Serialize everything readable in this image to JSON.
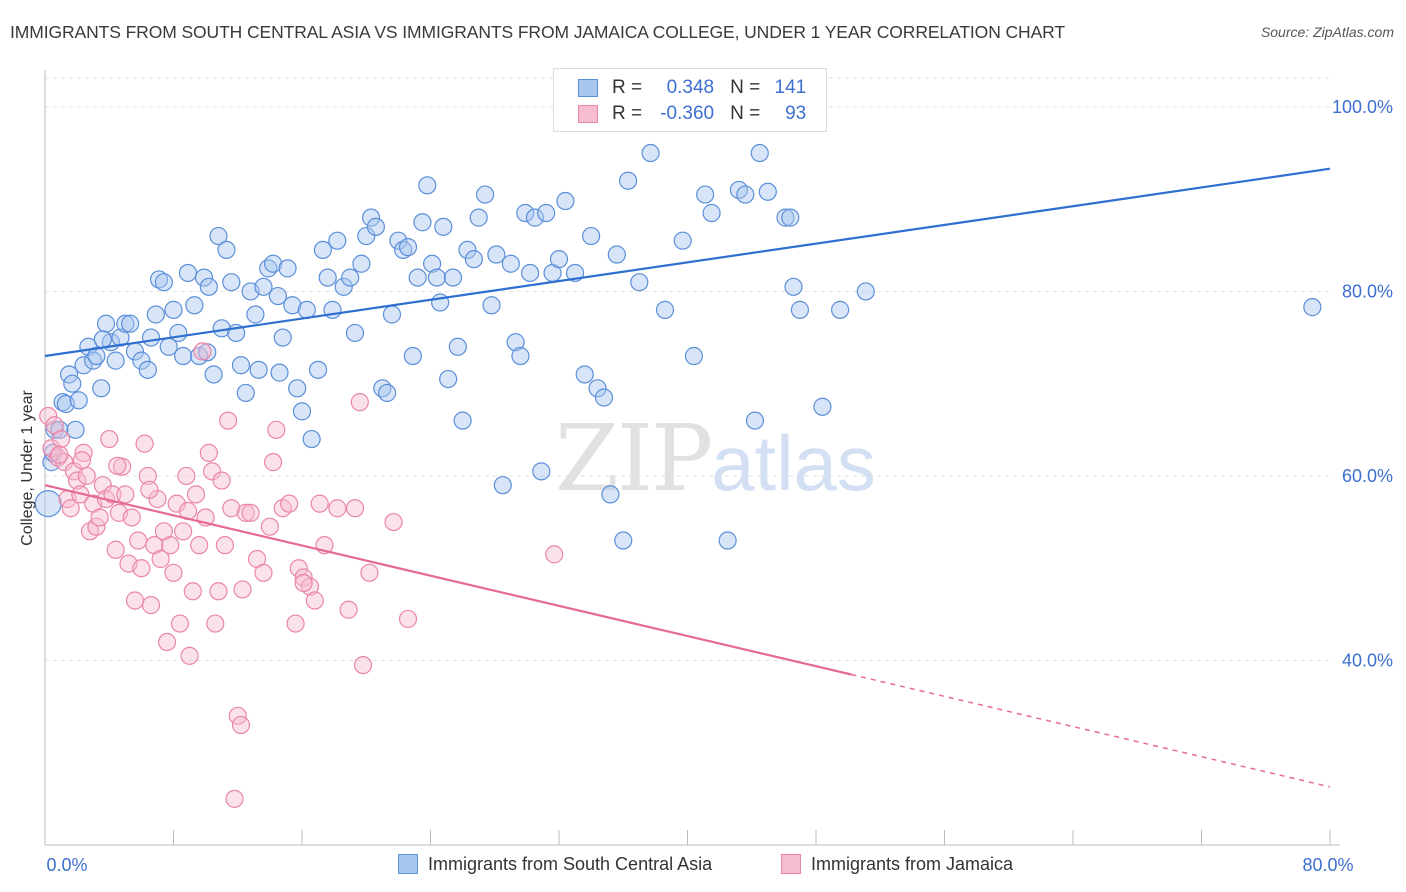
{
  "title": "IMMIGRANTS FROM SOUTH CENTRAL ASIA VS IMMIGRANTS FROM JAMAICA COLLEGE, UNDER 1 YEAR CORRELATION CHART",
  "source": "Source: ZipAtlas.com",
  "watermark": {
    "zip": "ZIP",
    "atlas": "atlas"
  },
  "colors": {
    "blue_fill": "#a9c6ef",
    "blue_stroke": "#5b8fd9",
    "blue_line": "#2f6fd0",
    "pink_fill": "#f6bcd0",
    "pink_stroke": "#ea86a7",
    "pink_line": "#e46b96",
    "axis_label": "#3d6fd1",
    "grid": "#e2e2e2"
  },
  "legend": [
    {
      "r_label": "R =",
      "r_value": "0.348",
      "n_label": "N =",
      "n_value": "141"
    },
    {
      "r_label": "R =",
      "r_value": "-0.360",
      "n_label": "N =",
      "n_value": "93"
    }
  ],
  "chart_data": {
    "type": "scatter",
    "title": "IMMIGRANTS FROM SOUTH CENTRAL ASIA VS IMMIGRANTS FROM JAMAICA COLLEGE, UNDER 1 YEAR CORRELATION CHART",
    "xlabel": "",
    "ylabel": "College, Under 1 year",
    "xlim": [
      0,
      80
    ],
    "ylim": [
      20,
      104
    ],
    "x_ticks": [
      0,
      8,
      16,
      24,
      32,
      40,
      48,
      56,
      64,
      72,
      80
    ],
    "x_tick_labels": [
      "0.0%",
      "",
      "",
      "",
      "",
      "",
      "",
      "",
      "",
      "",
      "80.0%"
    ],
    "y_ticks": [
      40,
      60,
      80,
      100
    ],
    "y_tick_labels": [
      "40.0%",
      "60.0%",
      "80.0%",
      "100.0%"
    ],
    "grid": true,
    "legend_position": "top-center",
    "series": [
      {
        "name": "Immigrants from South Central Asia",
        "color": "#5b8fd9",
        "trend": {
          "x": [
            0,
            80
          ],
          "y": [
            73.0,
            93.3
          ],
          "dashed_from": null
        },
        "points": [
          [
            0.2,
            57
          ],
          [
            0.4,
            61.5
          ],
          [
            0.5,
            62.5
          ],
          [
            0.6,
            65
          ],
          [
            0.9,
            65
          ],
          [
            1.1,
            68
          ],
          [
            1.3,
            67.8
          ],
          [
            1.5,
            71
          ],
          [
            1.7,
            70
          ],
          [
            1.9,
            65
          ],
          [
            2.1,
            68.2
          ],
          [
            2.4,
            72
          ],
          [
            2.7,
            74
          ],
          [
            3,
            72.5
          ],
          [
            3.2,
            73
          ],
          [
            3.5,
            69.5
          ],
          [
            3.8,
            76.5
          ],
          [
            4.1,
            74.5
          ],
          [
            4.4,
            72.5
          ],
          [
            4.7,
            75
          ],
          [
            5,
            76.5
          ],
          [
            5.3,
            76.5
          ],
          [
            5.6,
            73.5
          ],
          [
            6,
            72.5
          ],
          [
            6.4,
            71.5
          ],
          [
            6.6,
            75
          ],
          [
            6.9,
            77.5
          ],
          [
            7.1,
            81.3
          ],
          [
            7.4,
            81
          ],
          [
            7.7,
            74
          ],
          [
            8,
            78
          ],
          [
            8.3,
            75.5
          ],
          [
            8.6,
            73
          ],
          [
            8.9,
            82
          ],
          [
            9.3,
            78.5
          ],
          [
            9.6,
            73
          ],
          [
            9.9,
            81.5
          ],
          [
            10.2,
            80.5
          ],
          [
            10.5,
            71
          ],
          [
            10.8,
            86
          ],
          [
            11,
            76
          ],
          [
            11.3,
            84.5
          ],
          [
            11.6,
            81
          ],
          [
            11.9,
            75.5
          ],
          [
            12.2,
            72
          ],
          [
            12.5,
            69
          ],
          [
            12.8,
            80
          ],
          [
            13.1,
            77.5
          ],
          [
            13.3,
            71.5
          ],
          [
            13.6,
            80.5
          ],
          [
            13.9,
            82.5
          ],
          [
            14.2,
            83
          ],
          [
            14.5,
            79.5
          ],
          [
            14.8,
            75
          ],
          [
            15.1,
            82.5
          ],
          [
            15.4,
            78.5
          ],
          [
            15.7,
            69.5
          ],
          [
            16,
            67
          ],
          [
            16.3,
            78
          ],
          [
            16.6,
            64
          ],
          [
            17,
            71.5
          ],
          [
            17.3,
            84.5
          ],
          [
            17.6,
            81.5
          ],
          [
            17.9,
            78
          ],
          [
            18.2,
            85.5
          ],
          [
            18.6,
            80.5
          ],
          [
            19,
            81.5
          ],
          [
            19.3,
            75.5
          ],
          [
            19.7,
            83
          ],
          [
            20,
            86
          ],
          [
            20.3,
            88
          ],
          [
            20.6,
            87
          ],
          [
            21,
            69.5
          ],
          [
            21.3,
            69
          ],
          [
            21.6,
            77.5
          ],
          [
            22,
            85.5
          ],
          [
            22.3,
            84.5
          ],
          [
            22.6,
            84.8
          ],
          [
            22.9,
            73
          ],
          [
            23.2,
            81.5
          ],
          [
            23.5,
            87.5
          ],
          [
            23.8,
            91.5
          ],
          [
            24.1,
            83
          ],
          [
            24.4,
            81.5
          ],
          [
            24.8,
            87
          ],
          [
            25.1,
            70.5
          ],
          [
            25.4,
            81.5
          ],
          [
            25.7,
            74
          ],
          [
            26,
            66
          ],
          [
            26.3,
            84.5
          ],
          [
            26.7,
            83.5
          ],
          [
            27,
            88
          ],
          [
            27.4,
            90.5
          ],
          [
            27.8,
            78.5
          ],
          [
            28.1,
            84
          ],
          [
            28.5,
            59
          ],
          [
            29,
            83
          ],
          [
            29.3,
            74.5
          ],
          [
            29.6,
            73
          ],
          [
            29.9,
            88.5
          ],
          [
            30.2,
            82
          ],
          [
            30.5,
            88
          ],
          [
            30.9,
            60.5
          ],
          [
            31.2,
            88.5
          ],
          [
            31.6,
            82
          ],
          [
            32,
            83.5
          ],
          [
            32.4,
            89.8
          ],
          [
            33,
            82
          ],
          [
            33.6,
            71
          ],
          [
            34,
            86
          ],
          [
            34.4,
            69.5
          ],
          [
            34.8,
            68.5
          ],
          [
            35.2,
            58
          ],
          [
            35.6,
            84
          ],
          [
            36,
            53
          ],
          [
            36.3,
            92
          ],
          [
            37,
            81
          ],
          [
            37.7,
            95
          ],
          [
            38.6,
            78
          ],
          [
            39.7,
            85.5
          ],
          [
            40.4,
            73
          ],
          [
            41.1,
            90.5
          ],
          [
            41.5,
            88.5
          ],
          [
            42.5,
            53
          ],
          [
            43.2,
            91
          ],
          [
            43.6,
            90.5
          ],
          [
            44.2,
            66
          ],
          [
            44.5,
            95
          ],
          [
            45,
            90.8
          ],
          [
            46.1,
            88
          ],
          [
            46.4,
            88
          ],
          [
            46.6,
            80.5
          ],
          [
            47,
            78
          ],
          [
            48.4,
            67.5
          ],
          [
            49.5,
            78
          ],
          [
            51.1,
            80
          ],
          [
            78.9,
            78.3
          ],
          [
            3.6,
            74.8
          ],
          [
            10.1,
            73.4
          ],
          [
            14.6,
            71.2
          ],
          [
            24.6,
            78.8
          ]
        ]
      },
      {
        "name": "Immigrants from Jamaica",
        "color": "#ea86a7",
        "trend": {
          "x": [
            0,
            80
          ],
          "y": [
            59.0,
            26.3
          ],
          "dashed_from": 50.2
        },
        "points": [
          [
            0.2,
            66.5
          ],
          [
            0.4,
            63
          ],
          [
            0.6,
            65.5
          ],
          [
            0.8,
            62
          ],
          [
            1,
            64
          ],
          [
            1.2,
            61.5
          ],
          [
            1.4,
            57.5
          ],
          [
            1.6,
            56.5
          ],
          [
            1.8,
            60.5
          ],
          [
            2,
            59.5
          ],
          [
            2.2,
            58
          ],
          [
            2.4,
            62.5
          ],
          [
            2.6,
            60
          ],
          [
            2.8,
            54
          ],
          [
            3,
            57
          ],
          [
            3.2,
            54.5
          ],
          [
            3.4,
            55.5
          ],
          [
            3.6,
            59
          ],
          [
            3.8,
            57.5
          ],
          [
            4,
            64
          ],
          [
            4.2,
            58
          ],
          [
            4.4,
            52
          ],
          [
            4.6,
            56
          ],
          [
            4.8,
            61
          ],
          [
            5,
            58
          ],
          [
            5.2,
            50.5
          ],
          [
            5.4,
            55.5
          ],
          [
            5.6,
            46.5
          ],
          [
            5.8,
            53
          ],
          [
            6,
            50
          ],
          [
            6.2,
            63.5
          ],
          [
            6.4,
            60
          ],
          [
            6.6,
            46
          ],
          [
            6.8,
            52.5
          ],
          [
            7,
            57.5
          ],
          [
            7.2,
            51
          ],
          [
            7.4,
            54
          ],
          [
            7.6,
            42
          ],
          [
            7.8,
            52.5
          ],
          [
            8,
            49.5
          ],
          [
            8.2,
            57
          ],
          [
            8.4,
            44
          ],
          [
            8.6,
            54
          ],
          [
            8.8,
            60
          ],
          [
            9,
            40.5
          ],
          [
            9.2,
            47.5
          ],
          [
            9.4,
            58
          ],
          [
            9.6,
            52.5
          ],
          [
            9.8,
            73.5
          ],
          [
            10,
            55.5
          ],
          [
            10.2,
            62.5
          ],
          [
            10.4,
            60.5
          ],
          [
            10.6,
            44
          ],
          [
            10.8,
            47.5
          ],
          [
            11,
            59.5
          ],
          [
            11.2,
            52.5
          ],
          [
            11.4,
            66
          ],
          [
            11.6,
            56.5
          ],
          [
            11.8,
            25
          ],
          [
            12,
            34
          ],
          [
            12.2,
            33
          ],
          [
            12.5,
            56
          ],
          [
            12.8,
            56
          ],
          [
            13.2,
            51
          ],
          [
            13.6,
            49.5
          ],
          [
            14,
            54.5
          ],
          [
            14.2,
            61.5
          ],
          [
            14.4,
            65
          ],
          [
            14.8,
            56.5
          ],
          [
            15.2,
            57
          ],
          [
            15.6,
            44
          ],
          [
            15.8,
            50
          ],
          [
            16.1,
            49
          ],
          [
            16.5,
            48
          ],
          [
            16.8,
            46.5
          ],
          [
            17.1,
            57
          ],
          [
            17.4,
            52.5
          ],
          [
            18.2,
            56.5
          ],
          [
            18.9,
            45.5
          ],
          [
            19.3,
            56.5
          ],
          [
            19.6,
            68
          ],
          [
            19.8,
            39.5
          ],
          [
            20.2,
            49.5
          ],
          [
            21.7,
            55
          ],
          [
            22.6,
            44.5
          ],
          [
            31.7,
            51.5
          ],
          [
            0.9,
            62.3
          ],
          [
            2.3,
            61.7
          ],
          [
            4.5,
            61.1
          ],
          [
            6.5,
            58.5
          ],
          [
            8.9,
            56.2
          ],
          [
            12.3,
            47.7
          ],
          [
            16.1,
            48.4
          ]
        ]
      }
    ]
  },
  "bottom_legend": [
    "Immigrants from South Central Asia",
    "Immigrants from Jamaica"
  ]
}
